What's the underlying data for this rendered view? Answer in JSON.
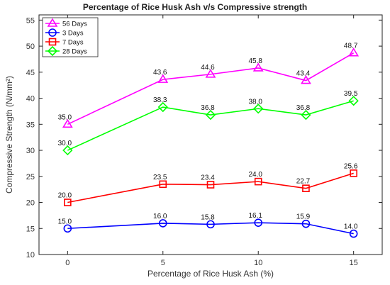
{
  "chart_data": {
    "type": "line",
    "title": "Percentage of Rice Husk Ash v/s Compressive strength",
    "xlabel": "Percentage of Rice Husk Ash (%)",
    "ylabel": "Compressive Strength (N/mm²)",
    "xlim": [
      -1.5,
      16.5
    ],
    "ylim": [
      10,
      56
    ],
    "xticks": [
      0,
      5,
      10,
      15
    ],
    "yticks": [
      10,
      15,
      20,
      25,
      30,
      35,
      40,
      45,
      50,
      55
    ],
    "x": [
      0,
      5,
      7.5,
      10,
      12.5,
      15
    ],
    "grid": false,
    "legend_position": "top-left",
    "series": [
      {
        "name": "56 Days",
        "values": [
          35.0,
          43.6,
          44.6,
          45.8,
          43.4,
          48.7
        ],
        "labels": [
          "35.0",
          "43.6",
          "44.6",
          "45.8",
          "43.4",
          "48.7"
        ],
        "color": "#ff00ff",
        "marker": "triangle"
      },
      {
        "name": "3 Days",
        "values": [
          15.0,
          16.0,
          15.8,
          16.1,
          15.9,
          14.0
        ],
        "labels": [
          "15.0",
          "16.0",
          "15.8",
          "16.1",
          "15.9",
          "14.0"
        ],
        "color": "#0000ff",
        "marker": "circle"
      },
      {
        "name": "7 Days",
        "values": [
          20.0,
          23.5,
          23.4,
          24.0,
          22.7,
          25.6
        ],
        "labels": [
          "20.0",
          "23.5",
          "23.4",
          "24.0",
          "22.7",
          "25.6"
        ],
        "color": "#ff0000",
        "marker": "square"
      },
      {
        "name": "28 Days",
        "values": [
          30.0,
          38.3,
          36.8,
          38.0,
          36.8,
          39.5
        ],
        "labels": [
          "30.0",
          "38.3",
          "36.8",
          "38.0",
          "36.8",
          "39.5"
        ],
        "color": "#00ff00",
        "marker": "diamond"
      }
    ]
  }
}
